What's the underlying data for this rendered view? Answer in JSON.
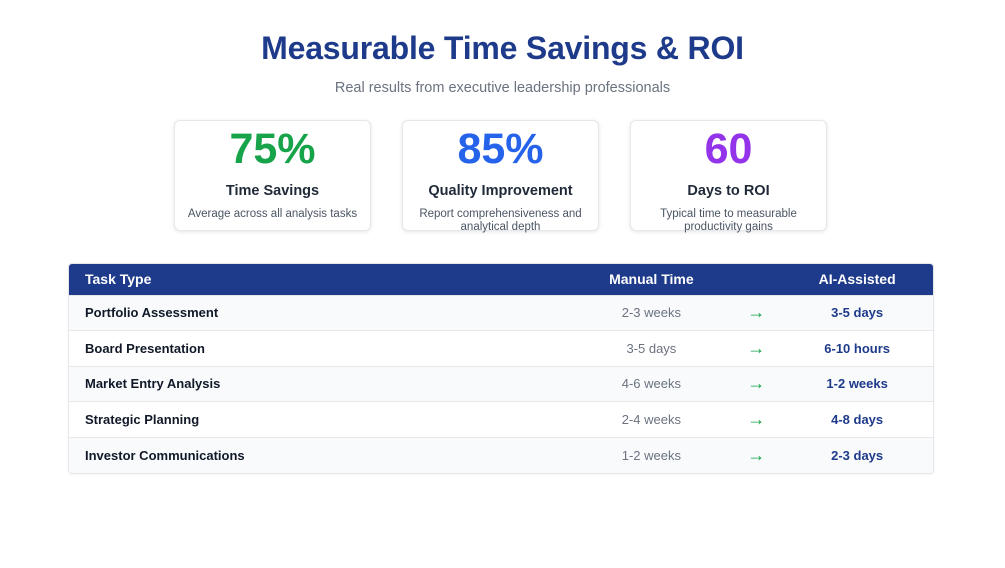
{
  "header": {
    "title": "Measurable Time Savings & ROI",
    "subtitle": "Real results from executive leadership professionals"
  },
  "stats": [
    {
      "value": "75%",
      "label": "Time Savings",
      "description": "Average across all analysis tasks",
      "color": "#16a34a"
    },
    {
      "value": "85%",
      "label": "Quality Improvement",
      "description": "Report comprehensiveness and analytical depth",
      "color": "#2563eb"
    },
    {
      "value": "60",
      "label": "Days to ROI",
      "description": "Typical time to measurable productivity gains",
      "color": "#9333ea"
    }
  ],
  "table": {
    "headers": {
      "task": "Task Type",
      "manual": "Manual Time",
      "ai": "AI-Assisted"
    },
    "arrow": "→",
    "rows": [
      {
        "task": "Portfolio Assessment",
        "manual": "2-3 weeks",
        "ai": "3-5 days"
      },
      {
        "task": "Board Presentation",
        "manual": "3-5 days",
        "ai": "6-10 hours"
      },
      {
        "task": "Market Entry Analysis",
        "manual": "4-6 weeks",
        "ai": "1-2 weeks"
      },
      {
        "task": "Strategic Planning",
        "manual": "2-4 weeks",
        "ai": "4-8 days"
      },
      {
        "task": "Investor Communications",
        "manual": "1-2 weeks",
        "ai": "2-3 days"
      }
    ]
  },
  "colors": {
    "navy": "#1e3a8a",
    "arrow_green": "#16a34a"
  }
}
